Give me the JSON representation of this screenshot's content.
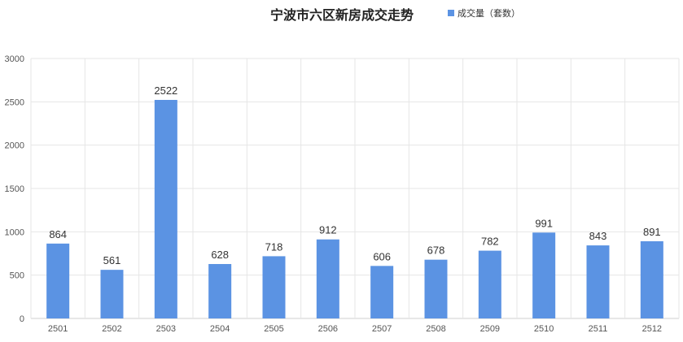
{
  "chart_data": {
    "type": "bar",
    "title": "宁波市六区新房成交走势",
    "categories": [
      "2501",
      "2502",
      "2503",
      "2504",
      "2505",
      "2506",
      "2507",
      "2508",
      "2509",
      "2510",
      "2511",
      "2512"
    ],
    "series": [
      {
        "name": "成交量（套数）",
        "values": [
          864,
          561,
          2522,
          628,
          718,
          912,
          606,
          678,
          782,
          991,
          843,
          891
        ]
      }
    ],
    "ylim": [
      0,
      3000
    ],
    "yticks": [
      0,
      500,
      1000,
      1500,
      2000,
      2500,
      3000
    ],
    "grid": true,
    "legend_position": "top",
    "bar_color": "#5b93e3"
  }
}
